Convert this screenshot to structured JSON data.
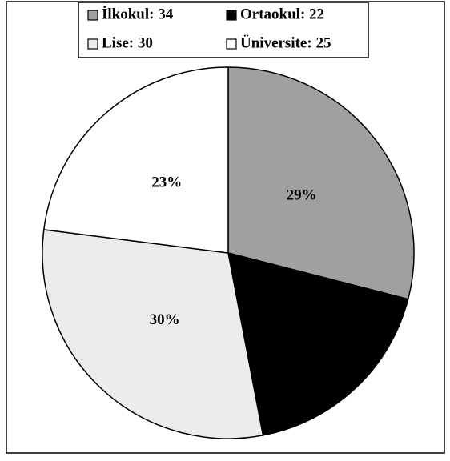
{
  "chart_data": {
    "type": "pie",
    "series": [
      {
        "name": "İlkokul: 34",
        "color": "#a0a0a0",
        "values": [
          29
        ],
        "value_labels": [
          "29%"
        ]
      },
      {
        "name": "Ortaokul: 22",
        "color": "#000000",
        "values": [
          18
        ],
        "value_labels": [
          "18%"
        ]
      },
      {
        "name": "Lise: 30",
        "color": "#ececec",
        "values": [
          30
        ],
        "value_labels": [
          "30%"
        ]
      },
      {
        "name": "Üniversite: 25",
        "color": "#ffffff",
        "values": [
          23
        ],
        "value_labels": [
          "23%"
        ]
      }
    ],
    "legend": "top"
  }
}
